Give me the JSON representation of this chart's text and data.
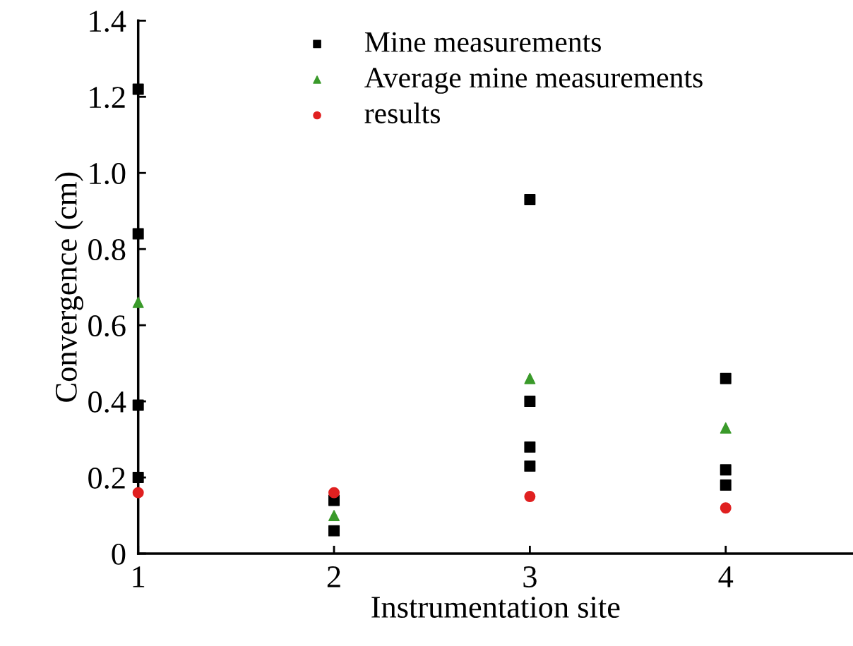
{
  "chart_data": {
    "type": "scatter",
    "xlabel": "Instrumentation site",
    "ylabel": "Convergence (cm)",
    "xlim": [
      1,
      4.65
    ],
    "xticks": [
      1,
      2,
      3,
      4
    ],
    "ylim": [
      0,
      1.4
    ],
    "yticks": [
      0,
      {
        "value": 0.2,
        "label": "0.2"
      },
      {
        "value": 0.4,
        "label": "0.4"
      },
      {
        "value": 0.6,
        "label": "0.6"
      },
      {
        "value": 0.8,
        "label": "0.8"
      },
      {
        "value": 1.0,
        "label": "1.0"
      },
      {
        "value": 1.2,
        "label": "1.2"
      },
      {
        "value": 1.4,
        "label": "1.4"
      }
    ],
    "grid": false,
    "legend": "top",
    "series": [
      {
        "name": "Mine measurements",
        "color": "#000000",
        "marker": "square",
        "x": [
          1,
          1,
          1,
          1,
          2,
          2,
          3,
          3,
          3,
          3,
          4,
          4,
          4
        ],
        "values": [
          1.22,
          0.84,
          0.39,
          0.2,
          0.06,
          0.14,
          0.93,
          0.4,
          0.28,
          0.23,
          0.46,
          0.22,
          0.18
        ]
      },
      {
        "name": "Average mine measurements",
        "color": "#3a9a2a",
        "marker": "triangle",
        "x": [
          1,
          2,
          3,
          4
        ],
        "values": [
          0.66,
          0.1,
          0.46,
          0.33
        ]
      },
      {
        "name": "results",
        "color": "#e02020",
        "marker": "circle",
        "x": [
          1,
          2,
          3,
          4
        ],
        "values": [
          0.16,
          0.16,
          0.15,
          0.12
        ]
      }
    ]
  }
}
